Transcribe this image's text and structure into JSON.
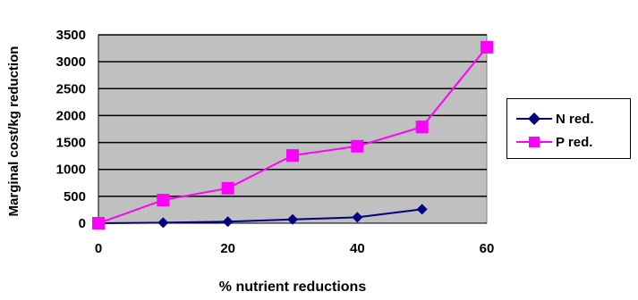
{
  "chart_data": {
    "type": "line",
    "title": "",
    "xlabel": "% nutrient reductions",
    "ylabel": "Marginal cost/kg reduction",
    "xlim": [
      0,
      60
    ],
    "ylim": [
      0,
      3500
    ],
    "x_ticks": [
      "0",
      "20",
      "40",
      "60"
    ],
    "y_ticks": [
      "0",
      "500",
      "1000",
      "1500",
      "2000",
      "2500",
      "3000",
      "3500"
    ],
    "grid": "horizontal",
    "plot_background": "#c0c0c0",
    "legend_position": "right",
    "series": [
      {
        "name": "N red.",
        "color": "#000080",
        "marker": "diamond",
        "x": [
          0,
          10,
          20,
          30,
          40,
          50
        ],
        "y": [
          0,
          10,
          30,
          70,
          110,
          260
        ]
      },
      {
        "name": "P red.",
        "color": "#ff00ff",
        "marker": "square",
        "x": [
          0,
          10,
          20,
          30,
          40,
          50,
          60
        ],
        "y": [
          0,
          430,
          650,
          1260,
          1430,
          1790,
          3270
        ]
      }
    ]
  }
}
